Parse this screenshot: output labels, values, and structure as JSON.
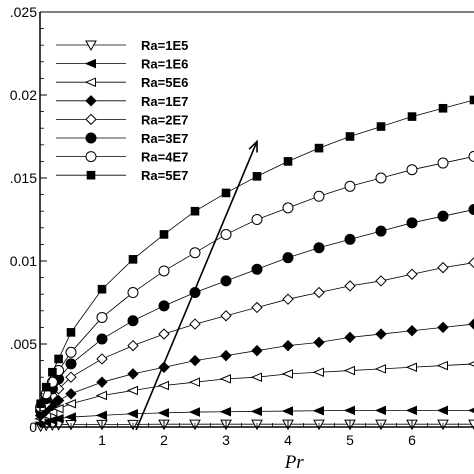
{
  "chart_data": {
    "type": "line",
    "xlabel": "Pr",
    "ylabel": "",
    "xlim": [
      0,
      7
    ],
    "ylim": [
      0,
      0.025
    ],
    "x_ticks": [
      1,
      2,
      3,
      4,
      5,
      6
    ],
    "x_tick_labels": [
      "1",
      "2",
      "3",
      "4",
      "5",
      "6"
    ],
    "y_ticks": [
      0,
      0.005,
      0.01,
      0.015,
      0.02,
      0.025
    ],
    "y_tick_labels": [
      "0",
      ".005",
      "0.01",
      ".015",
      "0.02",
      ".025"
    ],
    "grid": false,
    "legend_position": "top-left",
    "annotation": "arrow indicating increasing Ra",
    "series": [
      {
        "name": "Ra=1E5",
        "marker": "triangle-down-open",
        "x": [
          0.01,
          0.1,
          0.2,
          0.3,
          0.5,
          1,
          1.5,
          2,
          2.5,
          3,
          3.5,
          4,
          4.5,
          5,
          5.5,
          6,
          6.5,
          7
        ],
        "y": [
          5e-05,
          0.0001,
          0.00012,
          0.00014,
          0.00015,
          0.00016,
          0.00016,
          0.00017,
          0.00017,
          0.00017,
          0.00017,
          0.00017,
          0.00017,
          0.00017,
          0.00017,
          0.00017,
          0.00017,
          0.00017
        ]
      },
      {
        "name": "Ra=1E6",
        "marker": "triangle-left-filled",
        "x": [
          0.01,
          0.1,
          0.2,
          0.3,
          0.5,
          1,
          1.5,
          2,
          2.5,
          3,
          3.5,
          4,
          4.5,
          5,
          5.5,
          6,
          6.5,
          7
        ],
        "y": [
          0.0002,
          0.0003,
          0.0004,
          0.0005,
          0.0006,
          0.0007,
          0.0008,
          0.00085,
          0.0009,
          0.00092,
          0.00094,
          0.00096,
          0.00098,
          0.001,
          0.001,
          0.001,
          0.001,
          0.001
        ]
      },
      {
        "name": "Ra=5E6",
        "marker": "triangle-left-open",
        "x": [
          0.01,
          0.1,
          0.2,
          0.3,
          0.5,
          1,
          1.5,
          2,
          2.5,
          3,
          3.5,
          4,
          4.5,
          5,
          5.5,
          6,
          6.5,
          7
        ],
        "y": [
          0.0005,
          0.0007,
          0.0009,
          0.0011,
          0.0014,
          0.0019,
          0.0022,
          0.0025,
          0.0027,
          0.0029,
          0.003,
          0.0032,
          0.0033,
          0.0034,
          0.0035,
          0.0036,
          0.0037,
          0.0038
        ]
      },
      {
        "name": "Ra=1E7",
        "marker": "diamond-filled",
        "x": [
          0.01,
          0.1,
          0.2,
          0.3,
          0.5,
          1,
          1.5,
          2,
          2.5,
          3,
          3.5,
          4,
          4.5,
          5,
          5.5,
          6,
          6.5,
          7
        ],
        "y": [
          0.0007,
          0.001,
          0.0013,
          0.0016,
          0.002,
          0.0027,
          0.0032,
          0.0036,
          0.004,
          0.0043,
          0.0046,
          0.0049,
          0.0051,
          0.0054,
          0.0056,
          0.0058,
          0.006,
          0.0062
        ]
      },
      {
        "name": "Ra=2E7",
        "marker": "diamond-open",
        "x": [
          0.01,
          0.1,
          0.2,
          0.3,
          0.5,
          1,
          1.5,
          2,
          2.5,
          3,
          3.5,
          4,
          4.5,
          5,
          5.5,
          6,
          6.5,
          7
        ],
        "y": [
          0.0009,
          0.0014,
          0.0019,
          0.0023,
          0.003,
          0.0041,
          0.0049,
          0.0056,
          0.0062,
          0.0067,
          0.0072,
          0.0077,
          0.0081,
          0.0085,
          0.0088,
          0.0092,
          0.0096,
          0.0099
        ]
      },
      {
        "name": "Ra=3E7",
        "marker": "circle-filled",
        "x": [
          0.01,
          0.1,
          0.2,
          0.3,
          0.5,
          1,
          1.5,
          2,
          2.5,
          3,
          3.5,
          4,
          4.5,
          5,
          5.5,
          6,
          6.5,
          7
        ],
        "y": [
          0.001,
          0.0017,
          0.0023,
          0.0029,
          0.0038,
          0.0053,
          0.0064,
          0.0073,
          0.0081,
          0.0088,
          0.0095,
          0.0102,
          0.0108,
          0.0113,
          0.0118,
          0.0123,
          0.0127,
          0.0131
        ]
      },
      {
        "name": "Ra=4E7",
        "marker": "circle-open",
        "x": [
          0.01,
          0.1,
          0.2,
          0.3,
          0.5,
          1,
          1.5,
          2,
          2.5,
          3,
          3.5,
          4,
          4.5,
          5,
          5.5,
          6,
          6.5,
          7
        ],
        "y": [
          0.0012,
          0.002,
          0.0027,
          0.0034,
          0.0045,
          0.0066,
          0.0081,
          0.0094,
          0.0105,
          0.0116,
          0.0125,
          0.0132,
          0.0139,
          0.0145,
          0.015,
          0.0155,
          0.0159,
          0.0163
        ]
      },
      {
        "name": "Ra=5E7",
        "marker": "square-filled",
        "x": [
          0.01,
          0.1,
          0.2,
          0.3,
          0.5,
          1,
          1.5,
          2,
          2.5,
          3,
          3.5,
          4,
          4.5,
          5,
          5.5,
          6,
          6.5,
          7
        ],
        "y": [
          0.0014,
          0.0024,
          0.0033,
          0.0041,
          0.0057,
          0.0083,
          0.0101,
          0.0116,
          0.013,
          0.0141,
          0.0151,
          0.016,
          0.0168,
          0.0175,
          0.0181,
          0.0187,
          0.0192,
          0.0197
        ]
      }
    ]
  }
}
